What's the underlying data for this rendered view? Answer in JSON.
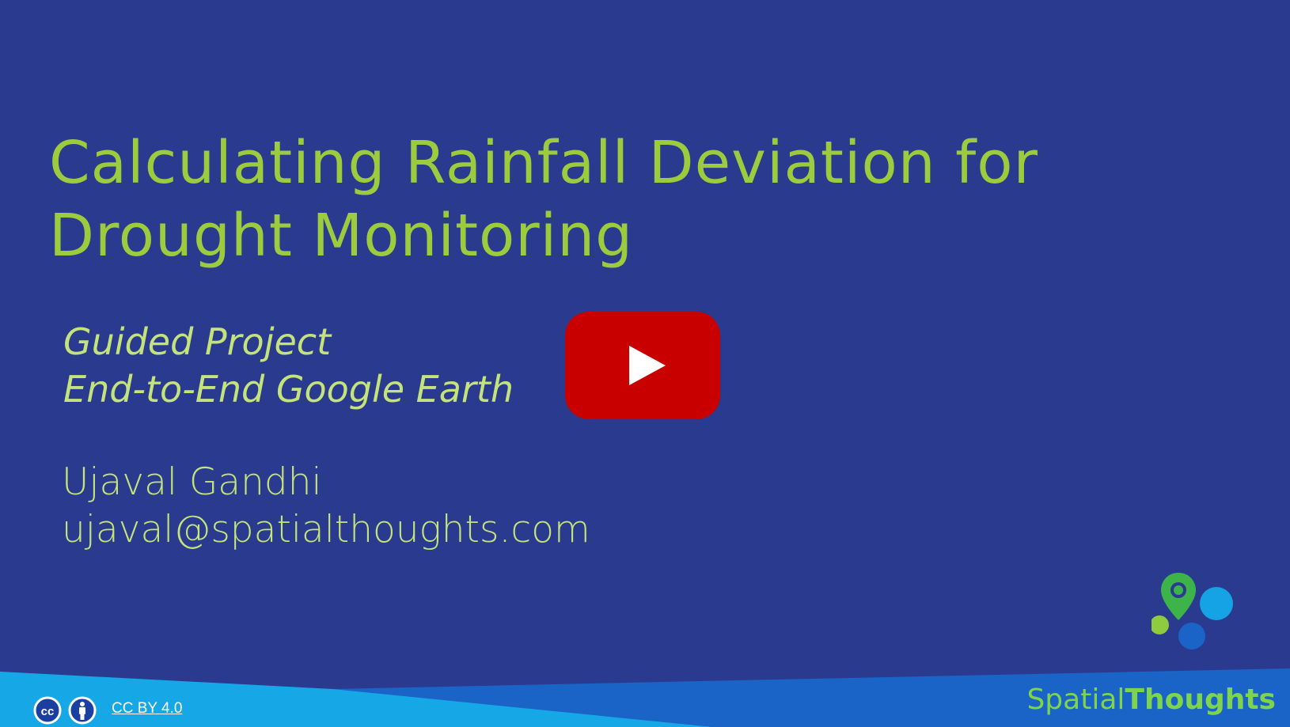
{
  "slide": {
    "title_lines": [
      "Calculating Rainfall Deviation for",
      "Drought Monitoring"
    ],
    "subtitle_lines": [
      "Guided Project",
      "End-to-End Google Earth"
    ],
    "author_lines": [
      "Ujaval Gandhi",
      "ujaval@spatialthoughts.com"
    ]
  },
  "video": {
    "play_icon": "youtube-play-icon"
  },
  "footer": {
    "license_icons": [
      "cc-icon",
      "attribution-icon"
    ],
    "license_label": "CC BY 4.0",
    "brand_part1": "Spatial",
    "brand_part2": "Thoughts"
  },
  "colors": {
    "background": "#293a8f",
    "title": "#9ccc3e",
    "text": "#c4e37b",
    "play_button": "#c90000",
    "footer_light": "#1aa9e8",
    "footer_dark": "#1a63c7",
    "brand": "#7fd44e"
  }
}
